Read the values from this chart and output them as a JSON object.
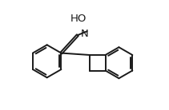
{
  "background_color": "#ffffff",
  "line_color": "#1a1a1a",
  "line_width": 1.4,
  "text_color": "#1a1a1a",
  "ho_label": "HO",
  "n_label": "N",
  "font_size": 9.5,
  "xlim": [
    0,
    10
  ],
  "ylim": [
    0,
    7
  ]
}
